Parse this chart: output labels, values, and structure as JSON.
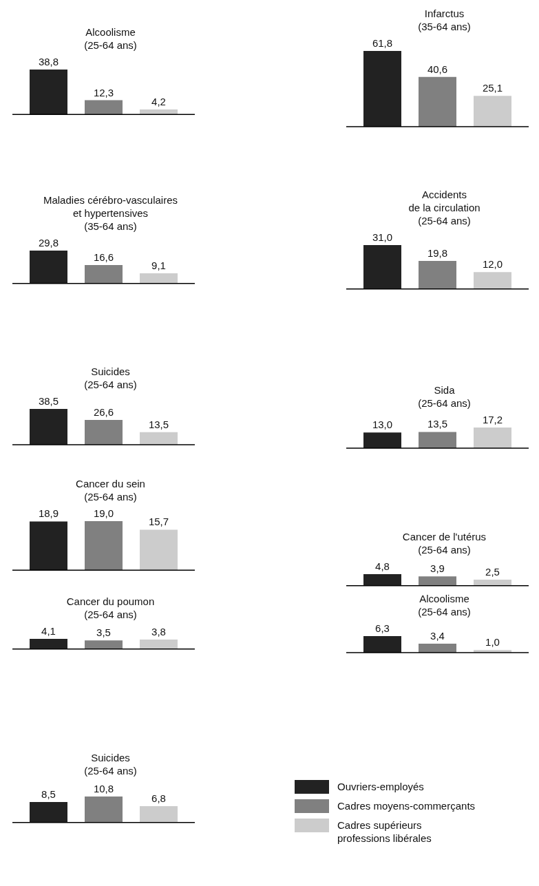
{
  "chart_data": [
    {
      "type": "bar",
      "title": "Alcoolisme\n(25-64 ans)",
      "categories": [
        null
      ],
      "legend": false,
      "series": [
        {
          "color": "#222222",
          "values": [
            38.8
          ],
          "value_labels": [
            "38,8"
          ]
        },
        {
          "color": "#808080",
          "values": [
            12.3
          ],
          "value_labels": [
            "12,3"
          ]
        },
        {
          "color": "#cccccc",
          "values": [
            4.2
          ],
          "value_labels": [
            "4,2"
          ]
        }
      ]
    },
    {
      "type": "bar",
      "title": "Infarctus\n(35-64 ans)",
      "categories": [
        null
      ],
      "legend": false,
      "series": [
        {
          "color": "#222222",
          "values": [
            61.8
          ],
          "value_labels": [
            "61,8"
          ]
        },
        {
          "color": "#808080",
          "values": [
            40.6
          ],
          "value_labels": [
            "40,6"
          ]
        },
        {
          "color": "#cccccc",
          "values": [
            25.1
          ],
          "value_labels": [
            "25,1"
          ]
        }
      ]
    },
    {
      "type": "bar",
      "title": "Maladies cérébro-vasculaires\net hypertensives\n(35-64 ans)",
      "categories": [
        null
      ],
      "legend": false,
      "series": [
        {
          "color": "#222222",
          "values": [
            29.8
          ],
          "value_labels": [
            "29,8"
          ]
        },
        {
          "color": "#808080",
          "values": [
            16.6
          ],
          "value_labels": [
            "16,6"
          ]
        },
        {
          "color": "#cccccc",
          "values": [
            9.1
          ],
          "value_labels": [
            "9,1"
          ]
        }
      ]
    },
    {
      "type": "bar",
      "title": "Accidents\nde la circulation\n(25-64 ans)",
      "categories": [
        null
      ],
      "legend": false,
      "series": [
        {
          "color": "#222222",
          "values": [
            31.0
          ],
          "value_labels": [
            "31,0"
          ]
        },
        {
          "color": "#808080",
          "values": [
            19.8
          ],
          "value_labels": [
            "19,8"
          ]
        },
        {
          "color": "#cccccc",
          "values": [
            12.0
          ],
          "value_labels": [
            "12,0"
          ]
        }
      ]
    },
    {
      "type": "bar",
      "title": "Suicides\n(25-64 ans)",
      "categories": [
        null
      ],
      "legend": false,
      "series": [
        {
          "color": "#222222",
          "values": [
            38.5
          ],
          "value_labels": [
            "38,5"
          ]
        },
        {
          "color": "#808080",
          "values": [
            26.6
          ],
          "value_labels": [
            "26,6"
          ]
        },
        {
          "color": "#cccccc",
          "values": [
            13.5
          ],
          "value_labels": [
            "13,5"
          ]
        }
      ]
    },
    {
      "type": "bar",
      "title": "Sida\n(25-64 ans)",
      "categories": [
        null
      ],
      "legend": false,
      "series": [
        {
          "color": "#222222",
          "values": [
            13.0
          ],
          "value_labels": [
            "13,0"
          ]
        },
        {
          "color": "#808080",
          "values": [
            13.5
          ],
          "value_labels": [
            "13,5"
          ]
        },
        {
          "color": "#cccccc",
          "values": [
            17.2
          ],
          "value_labels": [
            "17,2"
          ]
        }
      ]
    },
    {
      "type": "bar",
      "title": "Cancer du sein\n(25-64 ans)",
      "categories": [
        null
      ],
      "legend": false,
      "series": [
        {
          "color": "#222222",
          "values": [
            18.9
          ],
          "value_labels": [
            "18,9"
          ]
        },
        {
          "color": "#808080",
          "values": [
            19.0
          ],
          "value_labels": [
            "19,0"
          ]
        },
        {
          "color": "#cccccc",
          "values": [
            15.7
          ],
          "value_labels": [
            "15,7"
          ]
        }
      ]
    },
    {
      "type": "bar",
      "title": "Cancer de l'utérus\n(25-64 ans)",
      "categories": [
        null
      ],
      "legend": false,
      "series": [
        {
          "color": "#222222",
          "values": [
            4.8
          ],
          "value_labels": [
            "4,8"
          ]
        },
        {
          "color": "#808080",
          "values": [
            3.9
          ],
          "value_labels": [
            "3,9"
          ]
        },
        {
          "color": "#cccccc",
          "values": [
            2.5
          ],
          "value_labels": [
            "2,5"
          ]
        }
      ]
    },
    {
      "type": "bar",
      "title": "Cancer du poumon\n(25-64 ans)",
      "categories": [
        null
      ],
      "legend": false,
      "series": [
        {
          "color": "#222222",
          "values": [
            4.1
          ],
          "value_labels": [
            "4,1"
          ]
        },
        {
          "color": "#808080",
          "values": [
            3.5
          ],
          "value_labels": [
            "3,5"
          ]
        },
        {
          "color": "#cccccc",
          "values": [
            3.8
          ],
          "value_labels": [
            "3,8"
          ]
        }
      ]
    },
    {
      "type": "bar",
      "title": "Alcoolisme\n(25-64 ans)",
      "categories": [
        null
      ],
      "legend": false,
      "series": [
        {
          "color": "#222222",
          "values": [
            6.3
          ],
          "value_labels": [
            "6,3"
          ]
        },
        {
          "color": "#808080",
          "values": [
            3.4
          ],
          "value_labels": [
            "3,4"
          ]
        },
        {
          "color": "#cccccc",
          "values": [
            1.0
          ],
          "value_labels": [
            "1,0"
          ]
        }
      ]
    },
    {
      "type": "bar",
      "title": "Suicides\n(25-64 ans)",
      "categories": [
        null
      ],
      "legend": "right",
      "series": [
        {
          "name": "Ouvriers-employés",
          "color": "#222222",
          "values": [
            8.5
          ],
          "value_labels": [
            "8,5"
          ]
        },
        {
          "name": "Cadres moyens-commerçants",
          "color": "#808080",
          "values": [
            10.8
          ],
          "value_labels": [
            "10,8"
          ]
        },
        {
          "name": "Cadres supérieurs\nprofessions libérales",
          "color": "#cccccc",
          "values": [
            6.8
          ],
          "value_labels": [
            "6,8"
          ]
        }
      ]
    }
  ]
}
